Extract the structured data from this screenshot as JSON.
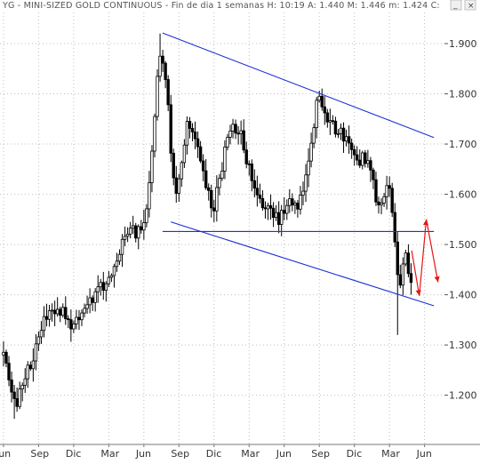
{
  "window": {
    "title": "YG - MINI-SIZED GOLD CONTINUOUS - Fin de dia 1 semanas  H: 10:19  A: 1.440  M: 1.446  m: 1.424  C:",
    "button_minimize_symbol": "_",
    "button_close_symbol": "×"
  },
  "chart_data": {
    "type": "candlestick",
    "title": "",
    "xlabel": "",
    "ylabel": "",
    "timeframe": "weekly",
    "price_axis": {
      "position": "right",
      "ticks": [
        1.2,
        1.3,
        1.4,
        1.5,
        1.6,
        1.7,
        1.8,
        1.9
      ],
      "tick_labels": [
        "1.200",
        "1.300",
        "1.400",
        "1.500",
        "1.600",
        "1.700",
        "1.800",
        "1.900"
      ],
      "ylim": [
        1.102,
        1.962
      ]
    },
    "time_axis": {
      "labels": [
        "Jun",
        "Sep",
        "Dic",
        "Mar",
        "Jun",
        "Sep",
        "Dic",
        "Mar",
        "Jun",
        "Sep",
        "Dic",
        "Mar",
        "Jun"
      ],
      "month_index": [
        0,
        3,
        6,
        9,
        12,
        15,
        18,
        21,
        24,
        27,
        30,
        33,
        36
      ],
      "xlim": [
        -0.3,
        37.7
      ]
    },
    "grid": true,
    "grid_style": "dotted",
    "colors": {
      "candles": "#000000",
      "trendlines": "#1f2fd6",
      "arrows": "#e81414",
      "grid": "#bfbfbf"
    },
    "price_path": [
      {
        "m": 0.0,
        "p": 1.28
      },
      {
        "m": 0.5,
        "p": 1.22
      },
      {
        "m": 1.0,
        "p": 1.18
      },
      {
        "m": 1.4,
        "p": 1.21
      },
      {
        "m": 2.0,
        "p": 1.25
      },
      {
        "m": 2.6,
        "p": 1.28
      },
      {
        "m": 3.2,
        "p": 1.33
      },
      {
        "m": 3.8,
        "p": 1.365
      },
      {
        "m": 4.5,
        "p": 1.372
      },
      {
        "m": 5.2,
        "p": 1.365
      },
      {
        "m": 5.8,
        "p": 1.34
      },
      {
        "m": 6.5,
        "p": 1.36
      },
      {
        "m": 7.2,
        "p": 1.38
      },
      {
        "m": 8.2,
        "p": 1.41
      },
      {
        "m": 9.0,
        "p": 1.435
      },
      {
        "m": 9.6,
        "p": 1.46
      },
      {
        "m": 10.2,
        "p": 1.51
      },
      {
        "m": 10.8,
        "p": 1.54
      },
      {
        "m": 11.2,
        "p": 1.52
      },
      {
        "m": 11.6,
        "p": 1.53
      },
      {
        "m": 12.0,
        "p": 1.55
      },
      {
        "m": 12.4,
        "p": 1.61
      },
      {
        "m": 12.8,
        "p": 1.72
      },
      {
        "m": 13.1,
        "p": 1.83
      },
      {
        "m": 13.35,
        "p": 1.89
      },
      {
        "m": 13.7,
        "p": 1.87
      },
      {
        "m": 14.0,
        "p": 1.8
      },
      {
        "m": 14.4,
        "p": 1.65
      },
      {
        "m": 14.8,
        "p": 1.6
      },
      {
        "m": 15.2,
        "p": 1.66
      },
      {
        "m": 15.8,
        "p": 1.75
      },
      {
        "m": 16.4,
        "p": 1.72
      },
      {
        "m": 17.0,
        "p": 1.64
      },
      {
        "m": 17.5,
        "p": 1.6
      },
      {
        "m": 18.0,
        "p": 1.57
      },
      {
        "m": 18.5,
        "p": 1.64
      },
      {
        "m": 19.3,
        "p": 1.72
      },
      {
        "m": 20.0,
        "p": 1.74
      },
      {
        "m": 20.7,
        "p": 1.68
      },
      {
        "m": 21.3,
        "p": 1.62
      },
      {
        "m": 22.0,
        "p": 1.58
      },
      {
        "m": 22.8,
        "p": 1.57
      },
      {
        "m": 23.5,
        "p": 1.55
      },
      {
        "m": 24.3,
        "p": 1.58
      },
      {
        "m": 25.0,
        "p": 1.57
      },
      {
        "m": 25.6,
        "p": 1.6
      },
      {
        "m": 26.2,
        "p": 1.7
      },
      {
        "m": 26.8,
        "p": 1.78
      },
      {
        "m": 27.2,
        "p": 1.79
      },
      {
        "m": 27.6,
        "p": 1.76
      },
      {
        "m": 28.2,
        "p": 1.74
      },
      {
        "m": 28.8,
        "p": 1.72
      },
      {
        "m": 29.4,
        "p": 1.7
      },
      {
        "m": 30.0,
        "p": 1.67
      },
      {
        "m": 30.8,
        "p": 1.67
      },
      {
        "m": 31.5,
        "p": 1.65
      },
      {
        "m": 31.9,
        "p": 1.59
      },
      {
        "m": 32.3,
        "p": 1.58
      },
      {
        "m": 32.7,
        "p": 1.61
      },
      {
        "m": 33.1,
        "p": 1.6
      },
      {
        "m": 33.4,
        "p": 1.52
      },
      {
        "m": 33.6,
        "p": 1.45
      },
      {
        "m": 33.8,
        "p": 1.4
      },
      {
        "m": 34.1,
        "p": 1.47
      },
      {
        "m": 34.4,
        "p": 1.48
      },
      {
        "m": 34.7,
        "p": 1.44
      },
      {
        "m": 34.9,
        "p": 1.43
      }
    ],
    "wick_extremes": [
      {
        "m": 1.0,
        "low": 1.153
      },
      {
        "m": 13.35,
        "high": 1.92
      },
      {
        "m": 33.65,
        "low": 1.32
      }
    ],
    "trendlines": [
      {
        "name": "upper channel",
        "from": {
          "m": 13.6,
          "p": 1.921
        },
        "to": {
          "m": 36.8,
          "p": 1.713
        }
      },
      {
        "name": "lower channel",
        "from": {
          "m": 14.3,
          "p": 1.545
        },
        "to": {
          "m": 36.8,
          "p": 1.378
        }
      },
      {
        "name": "support / resistance",
        "from": {
          "m": 13.6,
          "p": 1.526
        },
        "to": {
          "m": 36.8,
          "p": 1.526
        }
      }
    ],
    "arrows": [
      {
        "from": {
          "m": 34.9,
          "p": 1.488
        },
        "to": {
          "m": 35.55,
          "p": 1.398
        }
      },
      {
        "from": {
          "m": 35.55,
          "p": 1.398
        },
        "to": {
          "m": 36.15,
          "p": 1.55
        }
      },
      {
        "from": {
          "m": 36.15,
          "p": 1.55
        },
        "to": {
          "m": 37.15,
          "p": 1.425
        }
      }
    ]
  }
}
